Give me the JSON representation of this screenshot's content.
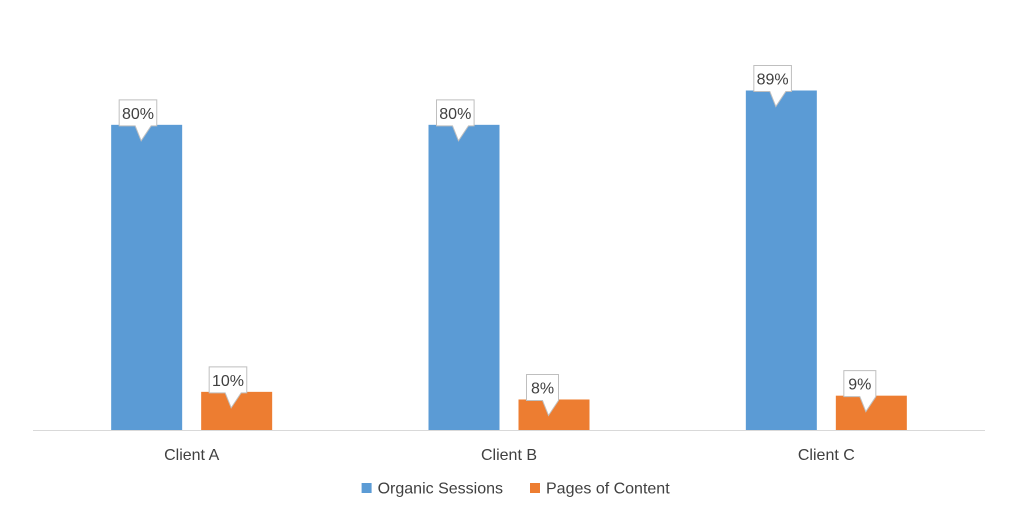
{
  "chart_data": {
    "type": "bar",
    "categories": [
      "Client A",
      "Client B",
      "Client C"
    ],
    "series": [
      {
        "name": "Organic Sessions",
        "values": [
          80,
          80,
          89
        ],
        "labels": [
          "80%",
          "80%",
          "89%"
        ],
        "color": "#5B9BD5"
      },
      {
        "name": "Pages of Content",
        "values": [
          10,
          8,
          9
        ],
        "labels": [
          "10%",
          "8%",
          "9%"
        ],
        "color": "#ED7D31"
      }
    ],
    "ylim": [
      0,
      100
    ],
    "grid": false,
    "legend_position": "bottom",
    "axis_color": "#D9D9D9",
    "label_text_color": "#404040",
    "callout_border_color": "#BFBFBF"
  }
}
